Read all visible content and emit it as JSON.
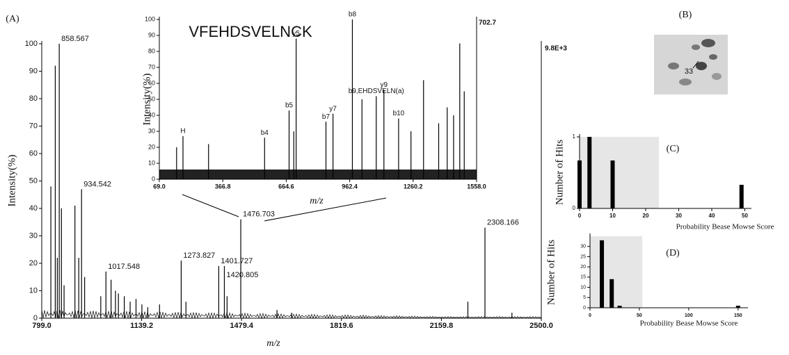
{
  "chart_data": [
    {
      "type": "stem",
      "panel_label": "(A)",
      "xlabel": "m/z",
      "ylabel": "Intensity(%)",
      "annotation": "9.8E+3",
      "xlim": [
        799,
        2500
      ],
      "xticks": [
        {
          "value": 799,
          "label": "799.0"
        },
        1139.2,
        1479.4,
        1819.6,
        2159.8,
        {
          "value": 2500,
          "label": "2500.0"
        }
      ],
      "ylim": [
        0,
        100
      ],
      "yticks": [
        0,
        10,
        20,
        30,
        40,
        50,
        60,
        70,
        80,
        90,
        100
      ],
      "x": [
        858.567,
        934.542,
        1017.548,
        1273.827,
        1401.727,
        1420.805,
        1476.703,
        2308.166
      ],
      "values": [
        100,
        47,
        17,
        21,
        19,
        19,
        36,
        33
      ],
      "other_peaks": {
        "x": [
          830,
          845,
          852,
          866,
          875,
          912,
          925,
          945,
          1000,
          1035,
          1050,
          1060,
          1080,
          1100,
          1120,
          1140,
          1160,
          1200,
          1290,
          1430,
          1600,
          1650,
          2250,
          2400
        ],
        "values": [
          48,
          92,
          22,
          40,
          12,
          41,
          22,
          15,
          8,
          14,
          10,
          9,
          8,
          6,
          7,
          5,
          4,
          5,
          6,
          8,
          3,
          2,
          6,
          2
        ]
      }
    },
    {
      "type": "stem",
      "title": "VFEHDSVELNCK",
      "xlabel": "m/z",
      "ylabel": "Intensity(%)",
      "annotation": "702.7",
      "xlim": [
        69,
        1558
      ],
      "xticks": [
        {
          "value": 69,
          "label": "69.0"
        },
        366.8,
        664.6,
        962.4,
        1260.2,
        {
          "value": 1558,
          "label": "1558.0"
        }
      ],
      "ylim": [
        0,
        100
      ],
      "yticks": [
        0,
        10,
        20,
        30,
        40,
        50,
        60,
        70,
        80,
        90,
        100
      ],
      "x": [
        180,
        563,
        678,
        711,
        851,
        884,
        975,
        1087,
        1123,
        1192
      ],
      "peak_labels": [
        "H",
        "b4",
        "b5",
        "y5",
        "b7",
        "y7",
        "b8",
        "b9,EHDSVELN(a)",
        "y9",
        "b10"
      ],
      "values": [
        27,
        26,
        43,
        88,
        36,
        41,
        100,
        52,
        56,
        38
      ],
      "other_peaks": {
        "x": [
          150,
          300,
          700,
          1020,
          1250,
          1309,
          1380,
          1420,
          1450,
          1479,
          1500
        ],
        "values": [
          20,
          22,
          30,
          50,
          30,
          62,
          35,
          45,
          40,
          85,
          55
        ]
      }
    },
    {
      "type": "bar",
      "panel_label": "(C)",
      "xlabel": "Probability Bease Mowse Score",
      "ylabel": "Number of Hits",
      "xlim": [
        0,
        52
      ],
      "xticks": [
        0,
        10,
        20,
        30,
        40,
        50
      ],
      "ylim": [
        0,
        1
      ],
      "yticks": [
        0,
        1
      ],
      "x": [
        0,
        3,
        10,
        49
      ],
      "values": [
        0.67,
        1,
        0.67,
        0.33
      ],
      "shaded_range": [
        0,
        24
      ]
    },
    {
      "type": "bar",
      "panel_label": "(D)",
      "xlabel": "Probability Bease Mowse Score",
      "ylabel": "Number of Hits",
      "xlim": [
        0,
        160
      ],
      "xticks": [
        0,
        50,
        100,
        150
      ],
      "ylim": [
        0,
        35
      ],
      "yticks": [
        0,
        5,
        10,
        15,
        20,
        25,
        30
      ],
      "x": [
        12,
        22,
        30,
        150
      ],
      "values": [
        33,
        14,
        1,
        1
      ],
      "shaded_range": [
        0,
        53
      ]
    }
  ],
  "image_panel": {
    "label": "(B)",
    "spot_label": "33"
  }
}
